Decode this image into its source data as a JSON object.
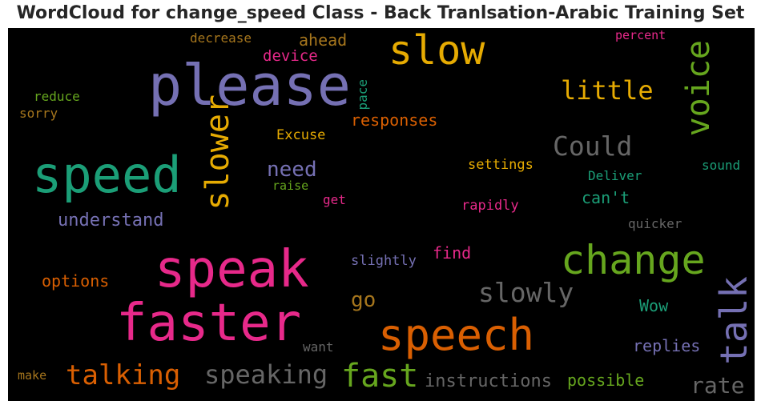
{
  "chart_data": {
    "type": "wordcloud",
    "title": "WordCloud for change_speed Class - Back Tranlsation-Arabic Training Set",
    "background": "#000000",
    "words": [
      {
        "text": "please",
        "color": "#7570b3",
        "vertical": false
      },
      {
        "text": "speak",
        "color": "#e7298a",
        "vertical": false
      },
      {
        "text": "faster",
        "color": "#e7298a",
        "vertical": false
      },
      {
        "text": "speed",
        "color": "#1b9e77",
        "vertical": false
      },
      {
        "text": "speech",
        "color": "#d95f02",
        "vertical": false
      },
      {
        "text": "change",
        "color": "#66a61e",
        "vertical": false
      },
      {
        "text": "slow",
        "color": "#e6ab02",
        "vertical": false
      },
      {
        "text": "slower",
        "color": "#e6ab02",
        "vertical": true
      },
      {
        "text": "talk",
        "color": "#7570b3",
        "vertical": true
      },
      {
        "text": "voice",
        "color": "#66a61e",
        "vertical": true
      },
      {
        "text": "fast",
        "color": "#66a61e",
        "vertical": false
      },
      {
        "text": "talking",
        "color": "#d95f02",
        "vertical": false
      },
      {
        "text": "speaking",
        "color": "#666666",
        "vertical": false
      },
      {
        "text": "slowly",
        "color": "#666666",
        "vertical": false
      },
      {
        "text": "Could",
        "color": "#666666",
        "vertical": false
      },
      {
        "text": "little",
        "color": "#e6ab02",
        "vertical": false
      },
      {
        "text": "rate",
        "color": "#666666",
        "vertical": false
      },
      {
        "text": "need",
        "color": "#7570b3",
        "vertical": false
      },
      {
        "text": "understand",
        "color": "#7570b3",
        "vertical": false
      },
      {
        "text": "instructions",
        "color": "#666666",
        "vertical": false
      },
      {
        "text": "possible",
        "color": "#66a61e",
        "vertical": false
      },
      {
        "text": "go",
        "color": "#a6761d",
        "vertical": false
      },
      {
        "text": "responses",
        "color": "#d95f02",
        "vertical": false
      },
      {
        "text": "options",
        "color": "#d95f02",
        "vertical": false
      },
      {
        "text": "replies",
        "color": "#7570b3",
        "vertical": false
      },
      {
        "text": "ahead",
        "color": "#a6761d",
        "vertical": false
      },
      {
        "text": "can't",
        "color": "#1b9e77",
        "vertical": false
      },
      {
        "text": "find",
        "color": "#e7298a",
        "vertical": false
      },
      {
        "text": "Wow",
        "color": "#1b9e77",
        "vertical": false
      },
      {
        "text": "device",
        "color": "#e7298a",
        "vertical": false
      },
      {
        "text": "Excuse",
        "color": "#e6ab02",
        "vertical": false
      },
      {
        "text": "settings",
        "color": "#e6ab02",
        "vertical": false
      },
      {
        "text": "slightly",
        "color": "#7570b3",
        "vertical": false
      },
      {
        "text": "rapidly",
        "color": "#e7298a",
        "vertical": false
      },
      {
        "text": "Deliver",
        "color": "#1b9e77",
        "vertical": false
      },
      {
        "text": "sound",
        "color": "#1b9e77",
        "vertical": false
      },
      {
        "text": "quicker",
        "color": "#666666",
        "vertical": false
      },
      {
        "text": "decrease",
        "color": "#a6761d",
        "vertical": false
      },
      {
        "text": "reduce",
        "color": "#66a61e",
        "vertical": false
      },
      {
        "text": "sorry",
        "color": "#a6761d",
        "vertical": false
      },
      {
        "text": "percent",
        "color": "#e7298a",
        "vertical": false
      },
      {
        "text": "raise",
        "color": "#66a61e",
        "vertical": false
      },
      {
        "text": "get",
        "color": "#e7298a",
        "vertical": false
      },
      {
        "text": "want",
        "color": "#666666",
        "vertical": false
      },
      {
        "text": "make",
        "color": "#a6761d",
        "vertical": false
      },
      {
        "text": "pace",
        "color": "#1b9e77",
        "vertical": true
      }
    ]
  }
}
